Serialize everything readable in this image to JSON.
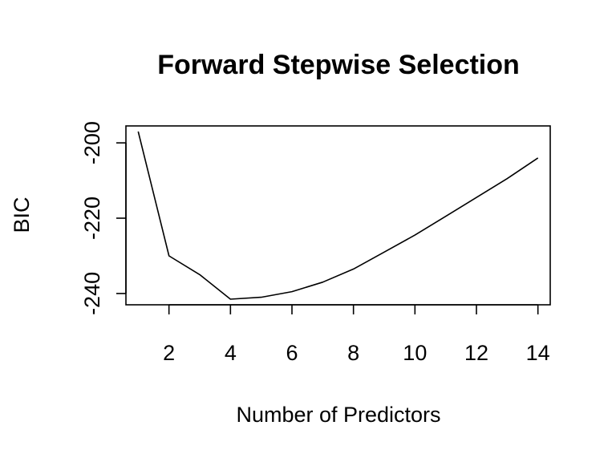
{
  "chart_data": {
    "type": "line",
    "title": "Forward Stepwise Selection",
    "xlabel": "Number of Predictors",
    "ylabel": "BIC",
    "x": [
      1,
      2,
      3,
      4,
      5,
      6,
      7,
      8,
      9,
      10,
      11,
      12,
      13,
      14
    ],
    "series": [
      {
        "values": [
          -197,
          -230,
          -235,
          -241.5,
          -241,
          -239.5,
          -237,
          -233.5,
          -229,
          -224.5,
          -219.5,
          -214.5,
          -209.5,
          -204
        ]
      }
    ],
    "xlim": [
      0.6,
      14.4
    ],
    "ylim": [
      -243,
      -195.5
    ],
    "xticks": [
      2,
      4,
      6,
      8,
      10,
      12,
      14
    ],
    "xtick_labels": [
      "2",
      "4",
      "6",
      "8",
      "10",
      "12",
      "14"
    ],
    "yticks": [
      -200,
      -220,
      -240
    ],
    "ytick_labels": [
      "-200",
      "-220",
      "-240"
    ],
    "grid": false,
    "legend": "none",
    "line_color": "#000000"
  }
}
